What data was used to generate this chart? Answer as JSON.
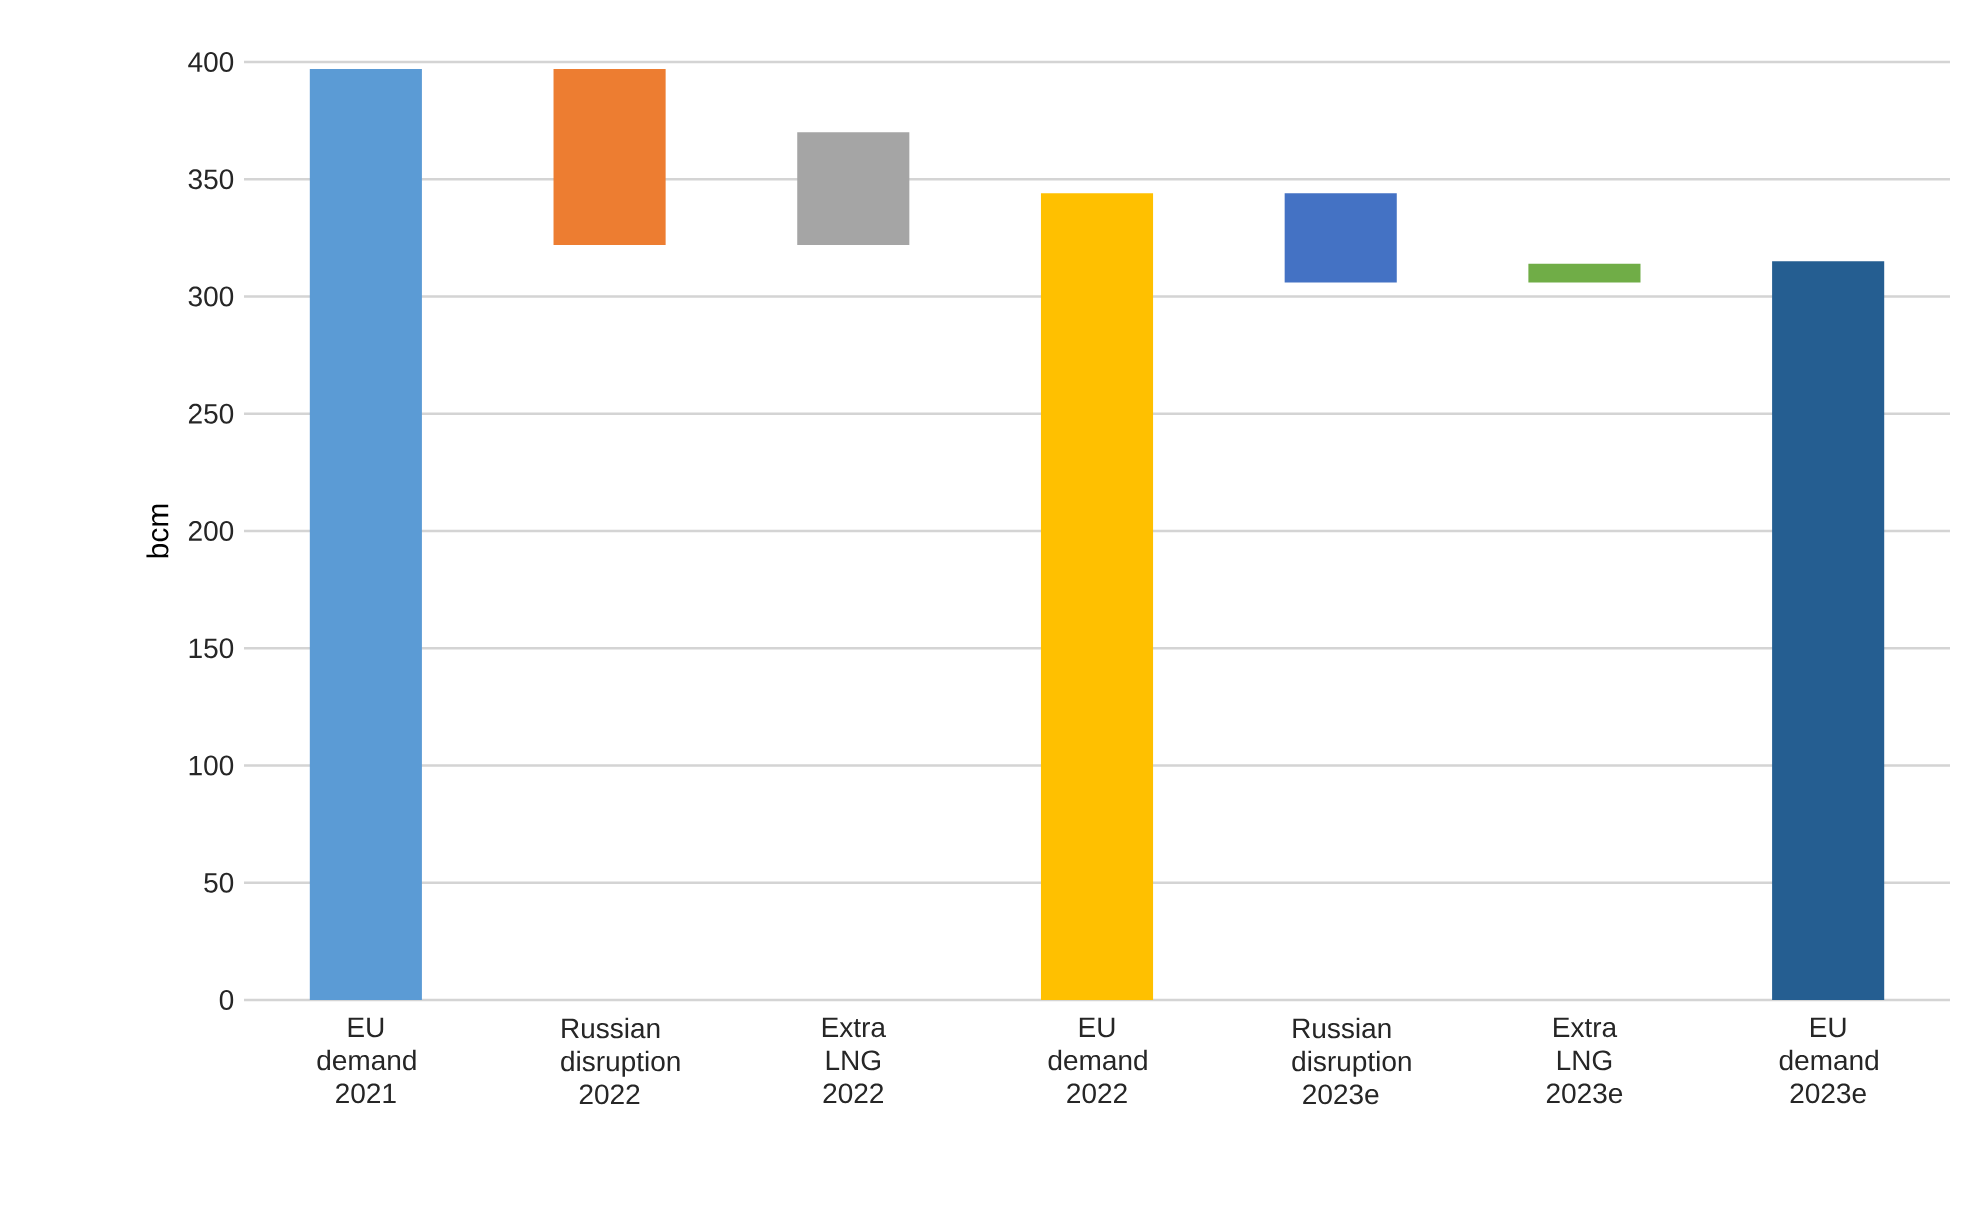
{
  "chart_data": {
    "type": "bar",
    "ylabel": "bcm",
    "categories": [
      "EU demand 2021",
      "Russian disruption 2022",
      "Extra LNG 2022",
      "EU demand 2022",
      "Russian disruption 2023e",
      "Extra LNG 2023e",
      "EU demand 2023e"
    ],
    "values": [
      397,
      75,
      48,
      344,
      38,
      8,
      315
    ],
    "base": [
      0,
      322,
      322,
      0,
      306,
      306,
      0
    ],
    "colors": [
      "#5b9bd5",
      "#ed7d31",
      "#a5a5a5",
      "#ffc000",
      "#4472c4",
      "#70ad47",
      "#255e91"
    ],
    "ylim": [
      0,
      400
    ],
    "yticks": [
      0,
      50,
      100,
      150,
      200,
      250,
      300,
      350,
      400
    ],
    "grid": "y"
  }
}
